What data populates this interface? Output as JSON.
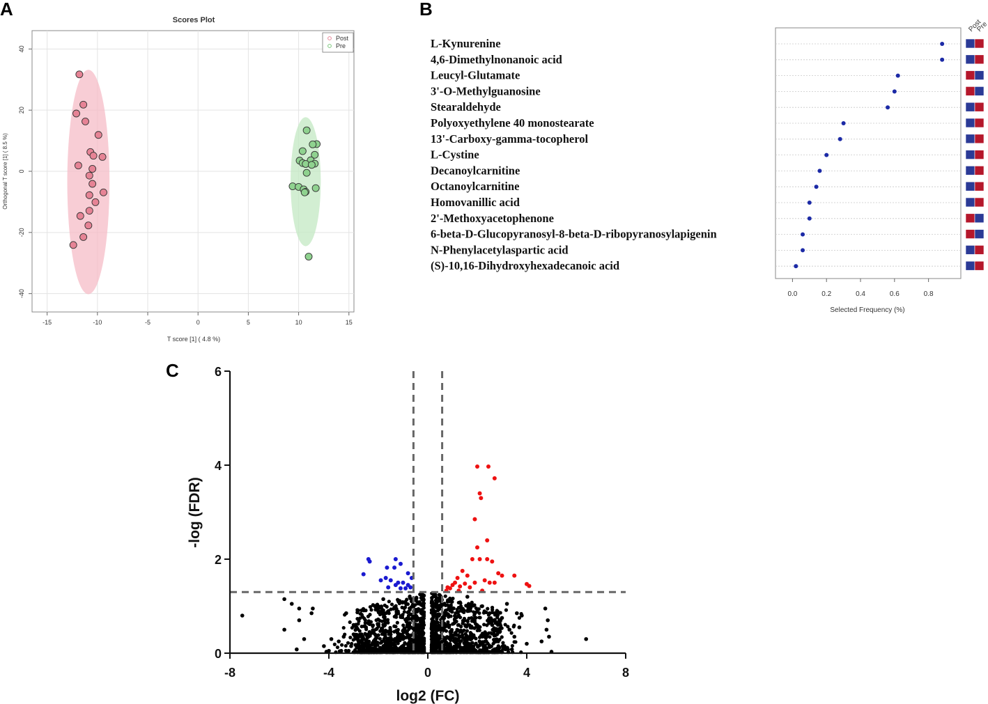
{
  "panels": {
    "a": "A",
    "b": "B",
    "c": "C"
  },
  "chart_data": [
    {
      "type": "scatter",
      "title": "Scores Plot",
      "xlabel": "T score [1] ( 4.8 %)",
      "ylabel": "Orthogonal T score [1] ( 8.5 %)",
      "xlim": [
        -16.5,
        15.5
      ],
      "ylim": [
        -46,
        46
      ],
      "xticks": [
        "-15",
        "-10",
        "-5",
        "0",
        "5",
        "10",
        "15"
      ],
      "xtick_values": [
        -15,
        -10,
        -5,
        0,
        5,
        10,
        15
      ],
      "yticks": [
        "-40",
        "-20",
        "0",
        "20",
        "40"
      ],
      "ytick_values": [
        -40,
        -20,
        0,
        20,
        40
      ],
      "grid": true,
      "legend": [
        {
          "name": "Post",
          "color": "#e8889a"
        },
        {
          "name": "Pre",
          "color": "#7cc87c"
        }
      ],
      "series": [
        {
          "name": "Post",
          "fill": "#e68395",
          "ellipse": {
            "cx": -10.9,
            "cy": -3.5,
            "rx": 2.1,
            "ry": 36.7,
            "color": "#f6bcc7"
          },
          "points": [
            [
              -11.8,
              31.7
            ],
            [
              -11.4,
              21.8
            ],
            [
              -12.1,
              18.9
            ],
            [
              -11.2,
              16.3
            ],
            [
              -9.9,
              11.9
            ],
            [
              -10.7,
              6.3
            ],
            [
              -10.4,
              5.1
            ],
            [
              -9.5,
              4.7
            ],
            [
              -11.9,
              1.9
            ],
            [
              -10.5,
              0.8
            ],
            [
              -10.8,
              -1.4
            ],
            [
              -10.5,
              -4.1
            ],
            [
              -9.4,
              -6.9
            ],
            [
              -10.8,
              -7.8
            ],
            [
              -10.2,
              -10.1
            ],
            [
              -10.8,
              -12.9
            ],
            [
              -11.7,
              -14.6
            ],
            [
              -10.9,
              -17.7
            ],
            [
              -11.4,
              -21.5
            ],
            [
              -12.4,
              -24.1
            ]
          ]
        },
        {
          "name": "Pre",
          "fill": "#8fd28f",
          "ellipse": {
            "cx": 10.7,
            "cy": -3.4,
            "rx": 1.5,
            "ry": 21.1,
            "color": "#c3e8c3"
          },
          "points": [
            [
              10.8,
              13.4
            ],
            [
              11.8,
              8.9
            ],
            [
              11.4,
              8.8
            ],
            [
              10.4,
              6.6
            ],
            [
              11.6,
              5.4
            ],
            [
              11.2,
              3.6
            ],
            [
              10.1,
              3.5
            ],
            [
              10.4,
              2.7
            ],
            [
              11.6,
              2.5
            ],
            [
              10.7,
              2.4
            ],
            [
              11.3,
              2.1
            ],
            [
              10.8,
              -0.5
            ],
            [
              9.4,
              -4.9
            ],
            [
              10.0,
              -5.1
            ],
            [
              11.7,
              -5.5
            ],
            [
              10.5,
              -5.9
            ],
            [
              10.7,
              -6.7
            ],
            [
              10.6,
              -6.9
            ],
            [
              11.0,
              -27.9
            ]
          ]
        }
      ]
    },
    {
      "type": "scatter",
      "subtype": "dot-plot",
      "xlabel": "Selected Frequency (%)",
      "xticks": [
        "0.0",
        "0.2",
        "0.4",
        "0.6",
        "0.8"
      ],
      "xtick_values": [
        0.0,
        0.2,
        0.4,
        0.6,
        0.8
      ],
      "xlim": [
        -0.1,
        0.99
      ],
      "heat_columns": [
        "Post",
        "Pre"
      ],
      "heat_colors": {
        "high": "#b5172b",
        "low": "#2b3a96"
      },
      "point_color": "#1c2aa6",
      "items": [
        {
          "name": "L-Kynurenine",
          "value": 0.88,
          "post": "low",
          "pre": "high"
        },
        {
          "name": "4,6-Dimethylnonanoic acid",
          "value": 0.88,
          "post": "low",
          "pre": "high"
        },
        {
          "name": "Leucyl-Glutamate",
          "value": 0.62,
          "post": "high",
          "pre": "low"
        },
        {
          "name": "3'-O-Methylguanosine",
          "value": 0.6,
          "post": "high",
          "pre": "low"
        },
        {
          "name": "Stearaldehyde",
          "value": 0.56,
          "post": "low",
          "pre": "high"
        },
        {
          "name": "Polyoxyethylene 40 monostearate",
          "value": 0.3,
          "post": "low",
          "pre": "high"
        },
        {
          "name": "13'-Carboxy-gamma-tocopherol",
          "value": 0.28,
          "post": "low",
          "pre": "high"
        },
        {
          "name": "L-Cystine",
          "value": 0.2,
          "post": "low",
          "pre": "high"
        },
        {
          "name": "Decanoylcarnitine",
          "value": 0.16,
          "post": "low",
          "pre": "high"
        },
        {
          "name": "Octanoylcarnitine",
          "value": 0.14,
          "post": "low",
          "pre": "high"
        },
        {
          "name": "Homovanillic acid",
          "value": 0.1,
          "post": "low",
          "pre": "high"
        },
        {
          "name": "2'-Methoxyacetophenone",
          "value": 0.1,
          "post": "high",
          "pre": "low"
        },
        {
          "name": "6-beta-D-Glucopyranosyl-8-beta-D-ribopyranosylapigenin",
          "value": 0.06,
          "post": "high",
          "pre": "low"
        },
        {
          "name": "N-Phenylacetylaspartic acid",
          "value": 0.06,
          "post": "low",
          "pre": "high"
        },
        {
          "name": "(S)-10,16-Dihydroxyhexadecanoic acid",
          "value": 0.02,
          "post": "low",
          "pre": "high"
        }
      ]
    },
    {
      "type": "scatter",
      "subtype": "volcano",
      "xlabel": "log2 (FC)",
      "ylabel": "-log (FDR)",
      "xlim": [
        -8,
        8
      ],
      "ylim": [
        0,
        6
      ],
      "xticks": [
        "-8",
        "-4",
        "0",
        "4",
        "8"
      ],
      "xtick_values": [
        -8,
        -4,
        0,
        4,
        8
      ],
      "yticks": [
        "0",
        "2",
        "4",
        "6"
      ],
      "ytick_values": [
        0,
        2,
        4,
        6
      ],
      "fc_threshold": [
        -0.58,
        0.58
      ],
      "fdr_threshold": 1.3,
      "colors": {
        "up": "#ee1111",
        "down": "#1a1ad0",
        "ns": "#000000"
      },
      "up": [
        [
          2.0,
          3.97
        ],
        [
          2.45,
          3.97
        ],
        [
          2.7,
          3.72
        ],
        [
          2.1,
          3.4
        ],
        [
          2.15,
          3.3
        ],
        [
          1.9,
          2.85
        ],
        [
          2.4,
          2.4
        ],
        [
          2.0,
          2.25
        ],
        [
          1.8,
          2.0
        ],
        [
          2.1,
          2.0
        ],
        [
          2.4,
          2.0
        ],
        [
          2.6,
          1.95
        ],
        [
          2.85,
          1.7
        ],
        [
          3.0,
          1.65
        ],
        [
          3.5,
          1.65
        ],
        [
          4.0,
          1.47
        ],
        [
          4.1,
          1.43
        ],
        [
          1.9,
          1.5
        ],
        [
          2.3,
          1.55
        ],
        [
          2.5,
          1.5
        ],
        [
          2.7,
          1.5
        ],
        [
          1.2,
          1.6
        ],
        [
          1.4,
          1.75
        ],
        [
          1.6,
          1.65
        ],
        [
          1.0,
          1.45
        ],
        [
          1.1,
          1.5
        ],
        [
          1.3,
          1.42
        ],
        [
          1.5,
          1.48
        ],
        [
          0.8,
          1.4
        ],
        [
          0.9,
          1.38
        ],
        [
          1.7,
          1.4
        ],
        [
          2.2,
          1.33
        ],
        [
          1.25,
          1.33
        ],
        [
          0.75,
          1.33
        ]
      ],
      "down": [
        [
          -2.4,
          2.0
        ],
        [
          -2.35,
          1.95
        ],
        [
          -1.3,
          2.0
        ],
        [
          -1.1,
          1.9
        ],
        [
          -1.35,
          1.82
        ],
        [
          -1.65,
          1.82
        ],
        [
          -2.6,
          1.68
        ],
        [
          -1.7,
          1.6
        ],
        [
          -0.8,
          1.7
        ],
        [
          -0.65,
          1.6
        ],
        [
          -1.9,
          1.55
        ],
        [
          -1.5,
          1.55
        ],
        [
          -1.2,
          1.5
        ],
        [
          -1.0,
          1.5
        ],
        [
          -0.8,
          1.45
        ],
        [
          -0.7,
          1.4
        ],
        [
          -1.3,
          1.45
        ],
        [
          -1.6,
          1.4
        ],
        [
          -1.1,
          1.38
        ],
        [
          -0.9,
          1.38
        ]
      ],
      "ns_scatter": [
        [
          -7.5,
          0.8
        ],
        [
          -5.8,
          1.15
        ],
        [
          -5.5,
          1.05
        ],
        [
          -5.2,
          0.95
        ],
        [
          -4.7,
          0.85
        ],
        [
          -4.65,
          0.95
        ],
        [
          -5.2,
          0.7
        ],
        [
          -5.8,
          0.5
        ],
        [
          -5.0,
          0.3
        ],
        [
          -5.3,
          0.08
        ],
        [
          -4.2,
          0.15
        ],
        [
          -4.0,
          0.05
        ],
        [
          -3.9,
          0.3
        ],
        [
          -3.6,
          0.25
        ],
        [
          -3.3,
          0.85
        ],
        [
          -3.4,
          0.35
        ],
        [
          -3.1,
          0.15
        ],
        [
          -3.0,
          0.4
        ],
        [
          -2.8,
          0.25
        ],
        [
          -2.6,
          0.1
        ],
        [
          -2.4,
          0.35
        ],
        [
          -2.5,
          0.55
        ],
        [
          -3.0,
          0.6
        ],
        [
          -4.1,
          0.03
        ],
        [
          -3.5,
          0.05
        ],
        [
          -3.2,
          0.05
        ],
        [
          6.4,
          0.3
        ],
        [
          4.8,
          0.5
        ],
        [
          4.9,
          0.35
        ],
        [
          5.0,
          0.03
        ],
        [
          4.75,
          0.95
        ],
        [
          4.85,
          0.7
        ],
        [
          4.6,
          0.25
        ],
        [
          3.8,
          0.8
        ],
        [
          3.6,
          0.85
        ],
        [
          3.5,
          0.35
        ],
        [
          3.2,
          1.05
        ],
        [
          3.0,
          0.75
        ],
        [
          3.1,
          0.15
        ],
        [
          2.9,
          0.45
        ],
        [
          2.6,
          0.6
        ],
        [
          2.7,
          0.25
        ],
        [
          2.8,
          0.1
        ],
        [
          3.3,
          0.5
        ],
        [
          3.7,
          0.55
        ],
        [
          3.4,
          0.08
        ],
        [
          2.5,
          0.85
        ],
        [
          2.2,
          1.0
        ],
        [
          2.4,
          0.4
        ],
        [
          4.0,
          0.2
        ],
        [
          1.6,
          1.2
        ],
        [
          -1.8,
          1.15
        ],
        [
          -2.0,
          0.95
        ]
      ]
    }
  ]
}
